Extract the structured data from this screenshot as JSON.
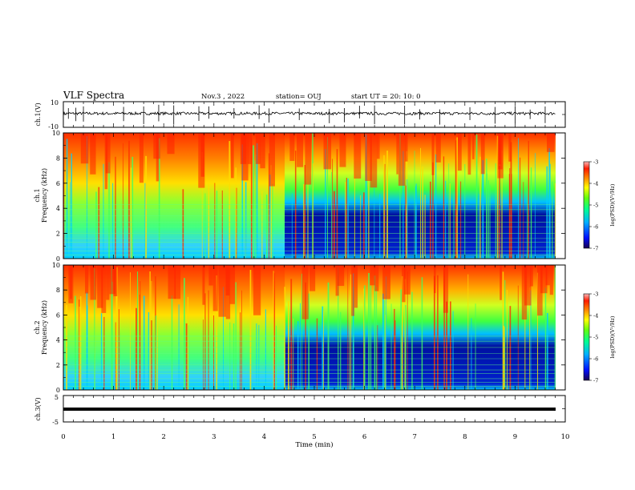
{
  "header": {
    "title": "VLF Spectra",
    "date": "Nov.3  , 2022",
    "station": "station= OUJ",
    "start": "start  UT =   20: 10: 0"
  },
  "chart_data": [
    {
      "type": "line",
      "name": "ch1-waveform",
      "ylabel": "ch.1(V)",
      "ylim": [
        -10,
        10
      ],
      "yticklabels": [
        "10",
        "-10"
      ],
      "x": [
        0,
        0.5,
        1,
        1.5,
        2,
        2.5,
        3,
        3.5,
        4,
        4.5,
        5,
        5.5,
        6,
        6.5,
        7,
        7.5,
        8,
        8.5,
        9,
        9.5,
        9.8
      ],
      "y": [
        1,
        0.5,
        1,
        0.8,
        1,
        0.6,
        1,
        0.9,
        0.7,
        1,
        0.8,
        1,
        0.6,
        1,
        0.9,
        1,
        0.7,
        1,
        0.8,
        1,
        0.9
      ],
      "spikes_x": [
        0.1,
        0.25,
        0.4,
        1.2,
        1.6,
        1.9,
        2.2,
        2.7,
        2.9,
        3.4,
        3.9,
        4.1,
        4.7,
        5.3,
        5.6,
        5.9,
        6.2,
        6.8,
        7.1,
        7.5,
        8.1,
        8.6,
        9.0,
        9.3,
        9.6
      ]
    },
    {
      "type": "heatmap",
      "name": "ch1-spectrogram",
      "ylabel": "ch.1\nFrequency (kHz)",
      "ylim": [
        0,
        10
      ],
      "yticks": [
        "0",
        "2",
        "4",
        "6",
        "8",
        "10"
      ],
      "colorbar": {
        "label": "log(PSD)(V²/Hz)",
        "min": -7,
        "max": -3,
        "ticks": [
          "-3",
          "-4",
          "-5",
          "-6",
          "-7"
        ]
      },
      "xlim": [
        0,
        9.8
      ]
    },
    {
      "type": "heatmap",
      "name": "ch2-spectrogram",
      "ylabel": "ch.2\nFrequency (kHz)",
      "ylim": [
        0,
        10
      ],
      "yticks": [
        "0",
        "2",
        "4",
        "6",
        "8",
        "10"
      ],
      "colorbar": {
        "label": "log(PSD)(V²/Hz)",
        "min": -7,
        "max": -3,
        "ticks": [
          "-3",
          "-4",
          "-5",
          "-6",
          "-7"
        ]
      },
      "xlim": [
        0,
        9.8
      ]
    },
    {
      "type": "line",
      "name": "ch3-waveform",
      "ylabel": "ch.3(V)",
      "ylim": [
        -5,
        5
      ],
      "yticklabels": [
        "5",
        "-5"
      ],
      "x": [
        0,
        9.8
      ],
      "y": [
        0,
        0
      ]
    }
  ],
  "xaxis": {
    "label": "Time  (min)",
    "ticks": [
      "0",
      "1",
      "2",
      "3",
      "4",
      "5",
      "6",
      "7",
      "8",
      "9",
      "10"
    ],
    "range": [
      0,
      10
    ]
  },
  "colors": {
    "cb_stops": [
      "#2a0066",
      "#0010ff",
      "#00a0ff",
      "#00ffa0",
      "#40ff20",
      "#ffff00",
      "#ff9900",
      "#ff1a00",
      "#ffb0b0"
    ]
  },
  "texts": {
    "ch1_spec_label_a": "ch.1",
    "ch1_spec_label_b": "Frequency (kHz)",
    "ch2_spec_label_a": "ch.2",
    "ch2_spec_label_b": "Frequency (kHz)",
    "cb_label": "log(PSD)(V²/Hz)"
  }
}
